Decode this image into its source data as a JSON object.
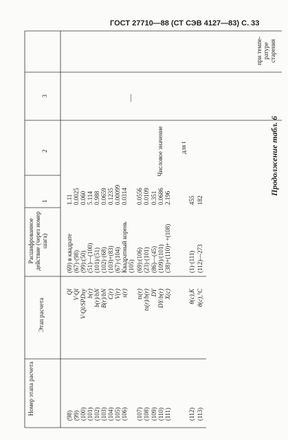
{
  "header": {
    "title": "ГОСТ 27710—88 (СТ СЭВ 4127—83) С. 33"
  },
  "caption": "Продолжение табл. 6",
  "table": {
    "columns": [
      "Номер этапа расчета",
      "Этап расчета",
      "Расшифрованное действие (через номер шага)",
      "Числовое значение",
      "для t",
      "1",
      "2",
      "3",
      "при темпе-ратуре старения"
    ],
    "dash": "—",
    "rows": [
      [
        "(98)",
        "Ql",
        "(69) в квадрате",
        "1.11"
      ],
      [
        "(99)",
        "V·Ql",
        "(67)·(98)",
        "0.0025"
      ],
      [
        "(100)",
        "V·Ql/SPDxy",
        "(99):(50)",
        "0.060"
      ],
      [
        "(101)",
        "b(r)",
        "(51)—(100)",
        "5.114"
      ],
      [
        "(102)",
        "b(r)/bN",
        "(101)/(51)",
        "0.988"
      ],
      [
        "(103)",
        "B(r)/bN",
        "(102)·(68)",
        "0.0659"
      ],
      [
        "(104)",
        "C(r)",
        "(103)+(83)",
        "0.1235"
      ],
      [
        "(105)",
        "V(r)",
        "(67)·(104)",
        "0.00099"
      ],
      [
        "(106)",
        "s(r)",
        "Квадратный корень (105)",
        "0.0314"
      ],
      [
        "(107)",
        "ts(r)",
        "(69):(106)",
        "0.0556"
      ],
      [
        "(108)",
        "ts(r)/b(r)",
        "(23)·(101)",
        "0.0109"
      ],
      [
        "(109)",
        "DY",
        "(86)—(45)",
        "0.351"
      ],
      [
        "(110)",
        "DY/b(r)",
        "(109)/(101)",
        "0.0686"
      ],
      [
        "(111)",
        "X(c)",
        "(38)+(110)+ +(108)",
        "2.196"
      ],
      [
        "(112)",
        "θ(c),K",
        "(1)·(111)",
        "455"
      ],
      [
        "(113)",
        "θ(c),°C",
        "(112)—273",
        "182"
      ]
    ]
  }
}
